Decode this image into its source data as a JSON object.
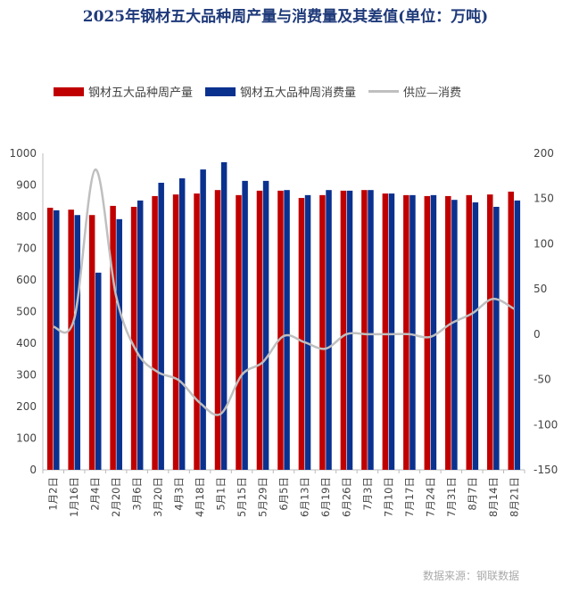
{
  "chart_data": {
    "type": "bar",
    "title": "2025年钢材五大品种周产量与消费量及其差值(单位：万吨)",
    "categories": [
      "1月2日",
      "1月16日",
      "2月4日",
      "2月20日",
      "3月6日",
      "3月20日",
      "4月3日",
      "4月18日",
      "5月1日",
      "5月15日",
      "5月29日",
      "6月5日",
      "6月13日",
      "6月19日",
      "6月26日",
      "7月3日",
      "7月10日",
      "7月17日",
      "7月24日",
      "7月31日",
      "8月7日",
      "8月14日",
      "8月21日"
    ],
    "series": [
      {
        "name": "钢材五大品种周产量",
        "type": "bar",
        "axis": "left",
        "color": "#c00000",
        "values": [
          828,
          822,
          805,
          834,
          831,
          865,
          870,
          873,
          884,
          868,
          882,
          882,
          859,
          868,
          882,
          884,
          873,
          868,
          865,
          865,
          868,
          870,
          879
        ]
      },
      {
        "name": "钢材五大品种周消费量",
        "type": "bar",
        "axis": "left",
        "color": "#0b318f",
        "values": [
          820,
          805,
          623,
          792,
          851,
          907,
          921,
          949,
          972,
          913,
          913,
          884,
          868,
          884,
          882,
          884,
          873,
          868,
          868,
          853,
          845,
          831,
          851
        ]
      },
      {
        "name": "供应—消费",
        "type": "line",
        "axis": "right",
        "color": "#bfbfbf",
        "values": [
          8,
          17,
          182,
          42,
          -20,
          -42,
          -51,
          -76,
          -88,
          -45,
          -31,
          -2,
          -9,
          -16,
          0,
          0,
          0,
          0,
          -3,
          12,
          23,
          39,
          28
        ]
      }
    ],
    "left_axis": {
      "ylim": [
        0,
        1000
      ],
      "ticks": [
        0,
        100,
        200,
        300,
        400,
        500,
        600,
        700,
        800,
        900,
        1000
      ]
    },
    "right_axis": {
      "ylim": [
        -150,
        200
      ],
      "ticks": [
        -150,
        -100,
        -50,
        0,
        50,
        100,
        150,
        200
      ]
    },
    "legend_position": "top-left",
    "source": "数据来源：钢联数据"
  }
}
